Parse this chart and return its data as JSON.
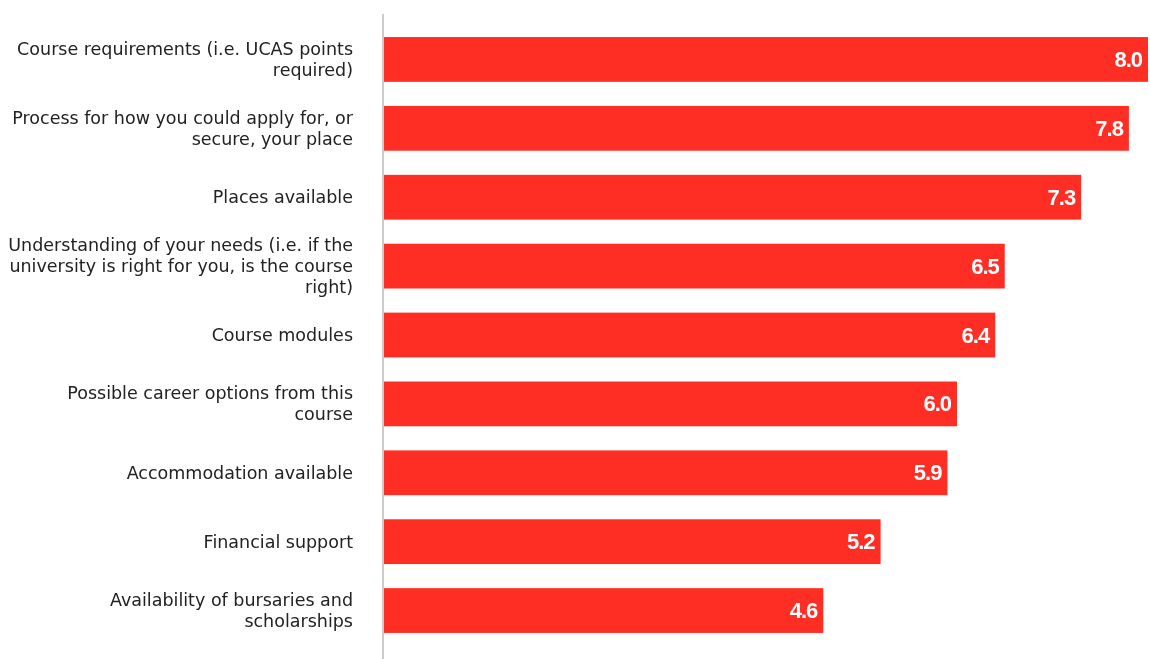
{
  "chart_data": {
    "type": "bar",
    "orientation": "horizontal",
    "categories": [
      "Course requirements (i.e. UCAS points required)",
      "Process for how you could apply for, or secure, your place",
      "Places available",
      "Understanding of your needs (i.e. if the university is right for you, is the course right)",
      "Course modules",
      "Possible career options from this course",
      "Accommodation available",
      "Financial support",
      "Availability of bursaries and scholarships"
    ],
    "values": [
      8.0,
      7.8,
      7.3,
      6.5,
      6.4,
      6.0,
      5.9,
      5.2,
      4.6
    ],
    "value_labels": [
      "8.0",
      "7.8",
      "7.3",
      "6.5",
      "6.4",
      "6.0",
      "5.9",
      "5.2",
      "4.6"
    ],
    "color": "#ff2e25"
  }
}
